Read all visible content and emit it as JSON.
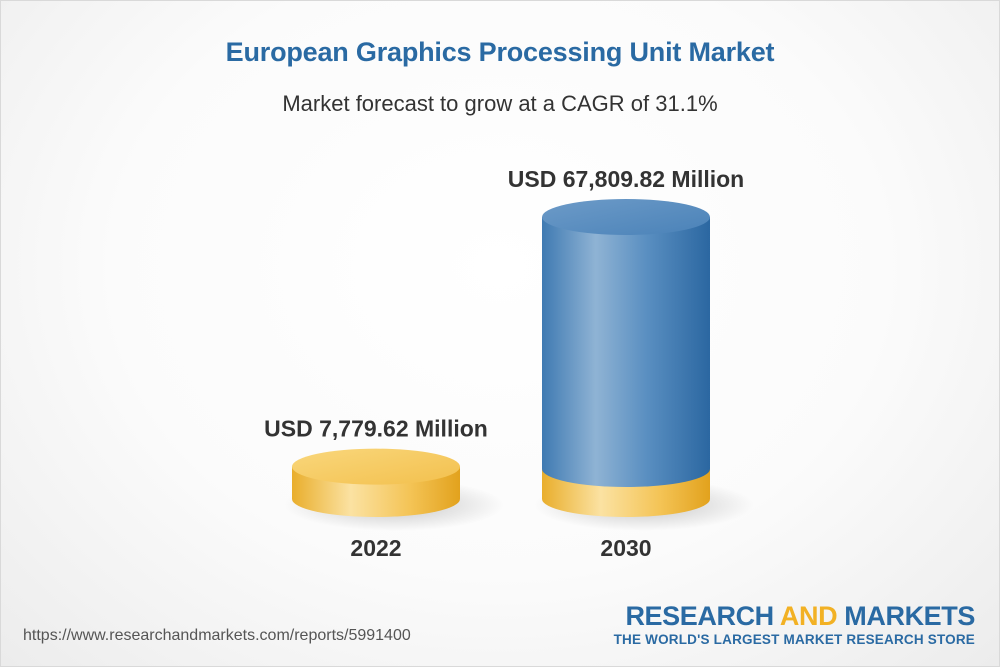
{
  "title": "European Graphics Processing Unit Market",
  "subtitle": "Market forecast to grow at a CAGR of 31.1%",
  "colors": {
    "title": "#2a6aa3",
    "bar_2022": "#f6c24f",
    "bar_2030": "#4a86bd",
    "text": "#333333",
    "brand_primary": "#2a6aa3",
    "brand_accent": "#f2b124"
  },
  "chart_data": {
    "type": "bar",
    "title": "European Graphics Processing Unit Market",
    "subtitle": "Market forecast to grow at a CAGR of 31.1%",
    "categories": [
      "2022",
      "2030"
    ],
    "values": [
      7779.62,
      67809.82
    ],
    "unit": "USD Million",
    "data_labels": [
      "USD 7,779.62 Million",
      "USD 67,809.82 Million"
    ],
    "cagr_percent": 31.1,
    "xlabel": "",
    "ylabel": "",
    "grid": false,
    "legend": "none"
  },
  "footer": {
    "url": "https://www.researchandmarkets.com/reports/5991400",
    "brand_word1": "RESEARCH",
    "brand_word2": "AND",
    "brand_word3": "MARKETS",
    "brand_tagline": "THE WORLD'S LARGEST MARKET RESEARCH STORE"
  }
}
